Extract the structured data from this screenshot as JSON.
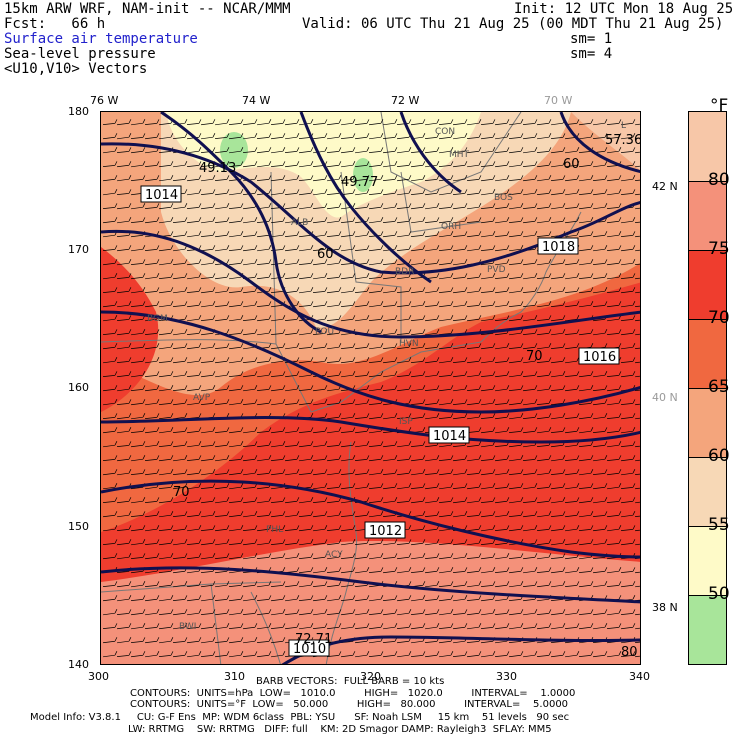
{
  "header": {
    "line1_left": "15km ARW WRF, NAM-init -- NCAR/MMM",
    "line1_right": "Init: 12 UTC Mon 18 Aug 25",
    "line2_left": "Fcst:   66 h",
    "line2_right": "Valid: 06 UTC Thu 21 Aug 25 (00 MDT Thu 21 Aug 25)",
    "field1": "Surface air temperature",
    "field1_sm": "sm= 1",
    "field2": "Sea-level pressure",
    "field2_sm": "sm= 4",
    "field3": "<U10,V10> Vectors"
  },
  "axes": {
    "top_ticks": [
      "76 W",
      "74 W",
      "72 W",
      "70 W"
    ],
    "left_ticks": [
      "180",
      "170",
      "160",
      "150",
      "140"
    ],
    "bottom_ticks": [
      "300",
      "310",
      "320",
      "330",
      "340"
    ],
    "right_ticks": [
      "42 N",
      "40 N",
      "38 N"
    ]
  },
  "colorbar": {
    "unit": "°F",
    "labels": [
      "80",
      "75",
      "70",
      "65",
      "60",
      "55",
      "50"
    ],
    "colors": [
      "#f7c7a8",
      "#f4917a",
      "#ef3d2e",
      "#f06840",
      "#f4a57c",
      "#f7d8b6",
      "#fefac8",
      "#a8e59a"
    ]
  },
  "map": {
    "colors": {
      "t80plus": "#f7c7a8",
      "t75_80": "#f4917a",
      "t70_75": "#ef3d2e",
      "t65_70": "#f06840",
      "t60_65": "#f4a57c",
      "t55_60": "#f7d8b6",
      "t50_55": "#fefac8",
      "t_below50": "#a8e59a",
      "isobar": "#101050",
      "state_line": "#777777",
      "barb": "#000000"
    },
    "isobar_labels": [
      "1014",
      "1016",
      "1018",
      "1014",
      "1012",
      "1010"
    ],
    "isotherm_labels": [
      "60",
      "70",
      "60",
      "70",
      "80"
    ],
    "min_max_labels": [
      "57.36",
      "49.13",
      "49.77",
      "72.71"
    ],
    "city_labels": [
      "CON",
      "MHT",
      "BOS",
      "ORH",
      "ALB",
      "PVD",
      "BDR",
      "POU",
      "HVN",
      "ISP",
      "BGM",
      "AVP",
      "PHL",
      "ACY",
      "BWI",
      "L"
    ]
  },
  "footer": {
    "line1": "BARB VECTORS:  FULL BARB = 10 kts",
    "line2": "CONTOURS:  UNITS=hPa  LOW=   1010.0         HIGH=   1020.0         INTERVAL=    1.0000",
    "line3": "CONTOURS:  UNITS=°F  LOW=   50.000         HIGH=   80.000         INTERVAL=    5.0000",
    "line4": "Model Info: V3.8.1     CU: G-F Ens  MP: WDM 6class  PBL: YSU      SF: Noah LSM     15 km    51 levels   90 sec",
    "line5": "LW: RRTMG    SW: RRTMG   DIFF: full    KM: 2D Smagor DAMP: Rayleigh3  SFLAY: MM5"
  }
}
